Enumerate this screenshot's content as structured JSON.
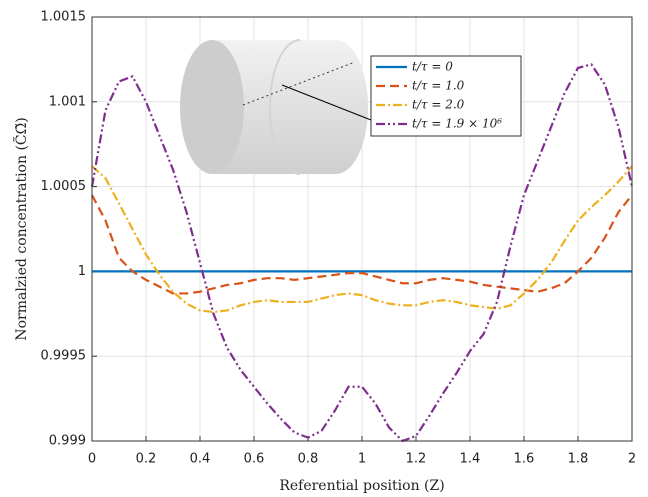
{
  "chart_data": {
    "type": "line",
    "xlabel": "Referential position (Z)",
    "ylabel": "Normalzied concentration (C̃Ω̃)",
    "x": [
      0,
      0.05,
      0.1,
      0.15,
      0.2,
      0.25,
      0.3,
      0.35,
      0.4,
      0.45,
      0.5,
      0.55,
      0.6,
      0.65,
      0.7,
      0.75,
      0.8,
      0.85,
      0.9,
      0.95,
      1.0,
      1.05,
      1.1,
      1.15,
      1.2,
      1.25,
      1.3,
      1.35,
      1.4,
      1.45,
      1.5,
      1.55,
      1.6,
      1.65,
      1.7,
      1.75,
      1.8,
      1.85,
      1.9,
      1.95,
      2.0
    ],
    "series": [
      {
        "name": "t/τ = 0",
        "color": "#0072bd",
        "dash": "solid",
        "values": [
          1,
          1,
          1,
          1,
          1,
          1,
          1,
          1,
          1,
          1,
          1,
          1,
          1,
          1,
          1,
          1,
          1,
          1,
          1,
          1,
          1,
          1,
          1,
          1,
          1,
          1,
          1,
          1,
          1,
          1,
          1,
          1,
          1,
          1,
          1,
          1,
          1,
          1,
          1,
          1,
          1
        ]
      },
      {
        "name": "t/τ = 1.0",
        "color": "#d95319",
        "dash": "dashed",
        "values": [
          1.00045,
          1.0003,
          1.00008,
          1.0,
          0.99995,
          0.99991,
          0.99987,
          0.99987,
          0.99988,
          0.9999,
          0.99992,
          0.99993,
          0.99995,
          0.99996,
          0.99996,
          0.99995,
          0.99996,
          0.99997,
          0.99998,
          0.99999,
          0.99999,
          0.99997,
          0.99995,
          0.99993,
          0.99993,
          0.99995,
          0.99996,
          0.99995,
          0.99994,
          0.99992,
          0.99991,
          0.9999,
          0.99989,
          0.99988,
          0.9999,
          0.99993,
          1.0,
          1.00008,
          1.0002,
          1.00035,
          1.00045
        ]
      },
      {
        "name": "t/τ = 2.0",
        "color": "#edb120",
        "dash": "dashdot",
        "values": [
          1.00062,
          1.00055,
          1.0004,
          1.00025,
          1.0001,
          0.99998,
          0.99988,
          0.99981,
          0.99977,
          0.99976,
          0.99977,
          0.9998,
          0.99982,
          0.99983,
          0.99982,
          0.99982,
          0.99982,
          0.99984,
          0.99986,
          0.99987,
          0.99986,
          0.99983,
          0.99981,
          0.9998,
          0.9998,
          0.99982,
          0.99983,
          0.99982,
          0.9998,
          0.99979,
          0.99978,
          0.9998,
          0.99987,
          0.99995,
          1.00005,
          1.00018,
          1.0003,
          1.00038,
          1.00045,
          1.00053,
          1.00062
        ]
      },
      {
        "name": "t/τ = 1.9 × 10⁶",
        "color": "#7e2f8e",
        "dash": "dashdotdot",
        "values": [
          1.0005,
          1.00095,
          1.00112,
          1.00115,
          1.001,
          1.0008,
          1.0006,
          1.00035,
          1.00005,
          0.99975,
          0.99955,
          0.99942,
          0.99932,
          0.99922,
          0.99913,
          0.99905,
          0.99902,
          0.99906,
          0.99918,
          0.99932,
          0.99932,
          0.99922,
          0.99908,
          0.999,
          0.99903,
          0.99915,
          0.99928,
          0.9994,
          0.99953,
          0.99963,
          0.99982,
          1.00015,
          1.00045,
          1.00065,
          1.00085,
          1.00105,
          1.0012,
          1.00122,
          1.0011,
          1.00085,
          1.0005
        ]
      }
    ],
    "xlim": [
      0,
      2
    ],
    "xticks": [
      0,
      0.2,
      0.4,
      0.6,
      0.8,
      1,
      1.2,
      1.4,
      1.6,
      1.8,
      2
    ],
    "ylim": [
      0.999,
      1.0015
    ],
    "yticks": [
      0.999,
      0.9995,
      1,
      1.0005,
      1.001,
      1.0015
    ],
    "grid": true,
    "legend": "upper right"
  }
}
